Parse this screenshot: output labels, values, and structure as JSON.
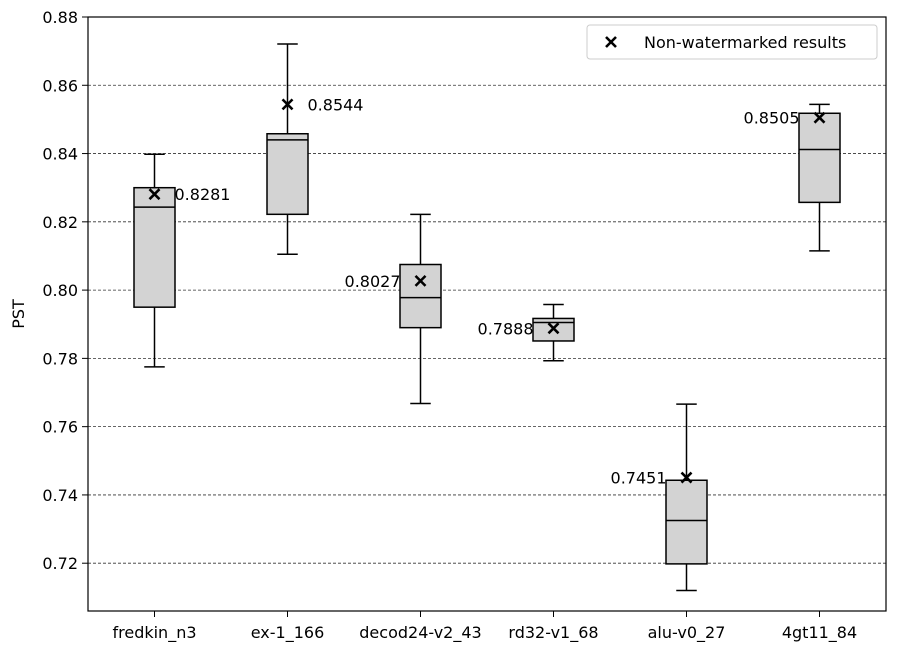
{
  "chart_data": {
    "type": "box",
    "title": "",
    "xlabel": "",
    "ylabel": "PST",
    "ylim": [
      0.706,
      0.88
    ],
    "yticks": [
      0.72,
      0.74,
      0.76,
      0.78,
      0.8,
      0.82,
      0.84,
      0.86,
      0.88
    ],
    "ytick_labels": [
      "0.72",
      "0.74",
      "0.76",
      "0.78",
      "0.80",
      "0.82",
      "0.84",
      "0.86",
      "0.88"
    ],
    "grid": "horizontal dashed",
    "legend": {
      "placement": "top-right",
      "entries": [
        "Non-watermarked results"
      ]
    },
    "categories": [
      "fredkin_n3",
      "ex-1_166",
      "decod24-v2_43",
      "rd32-v1_68",
      "alu-v0_27",
      "4gt11_84"
    ],
    "boxes": [
      {
        "name": "fredkin_n3",
        "whislo": 0.7775,
        "q1": 0.795,
        "med": 0.8243,
        "q3": 0.83,
        "whishi": 0.8398
      },
      {
        "name": "ex-1_166",
        "whislo": 0.8105,
        "q1": 0.8222,
        "med": 0.844,
        "q3": 0.8458,
        "whishi": 0.8721
      },
      {
        "name": "decod24-v2_43",
        "whislo": 0.7668,
        "q1": 0.789,
        "med": 0.7978,
        "q3": 0.8075,
        "whishi": 0.8222
      },
      {
        "name": "rd32-v1_68",
        "whislo": 0.7793,
        "q1": 0.7851,
        "med": 0.7905,
        "q3": 0.7917,
        "whishi": 0.7958
      },
      {
        "name": "alu-v0_27",
        "whislo": 0.712,
        "q1": 0.7198,
        "med": 0.7325,
        "q3": 0.7443,
        "whishi": 0.7666
      },
      {
        "name": "4gt11_84",
        "whislo": 0.8115,
        "q1": 0.8257,
        "med": 0.8412,
        "q3": 0.8518,
        "whishi": 0.8544
      }
    ],
    "markers": [
      {
        "name": "fredkin_n3",
        "value": 0.8281,
        "label": "0.8281",
        "label_side": "right"
      },
      {
        "name": "ex-1_166",
        "value": 0.8544,
        "label": "0.8544",
        "label_side": "right"
      },
      {
        "name": "decod24-v2_43",
        "value": 0.8027,
        "label": "0.8027",
        "label_side": "left"
      },
      {
        "name": "rd32-v1_68",
        "value": 0.7888,
        "label": "0.7888",
        "label_side": "left"
      },
      {
        "name": "alu-v0_27",
        "value": 0.7451,
        "label": "0.7451",
        "label_side": "left"
      },
      {
        "name": "4gt11_84",
        "value": 0.8505,
        "label": "0.8505",
        "label_side": "left"
      }
    ],
    "colors": {
      "box_fill": "#d3d3d3",
      "line": "#000000",
      "grid": "#333333"
    }
  }
}
